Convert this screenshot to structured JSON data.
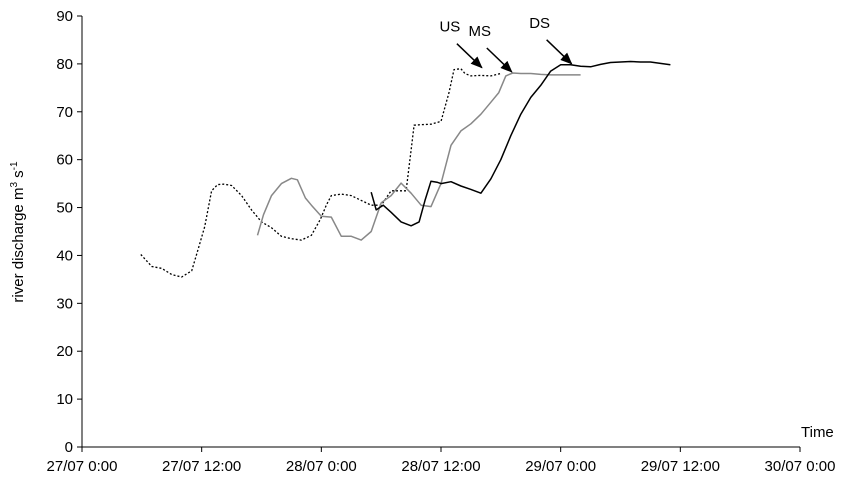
{
  "chart_data": {
    "type": "line",
    "title": "",
    "xlabel": "Time",
    "ylabel_text": "river discharge m",
    "ylabel_sup1": "3",
    "ylabel_mid": " s",
    "ylabel_sup2": "-1",
    "x_unit": "hours since 27/07 0:00 (x tick labels show date/time)",
    "xlim": [
      0,
      72
    ],
    "ylim": [
      0,
      90
    ],
    "x_ticks": [
      {
        "value": 0,
        "label": "27/07 0:00"
      },
      {
        "value": 12,
        "label": "27/07 12:00"
      },
      {
        "value": 24,
        "label": "28/07 0:00"
      },
      {
        "value": 36,
        "label": "28/07 12:00"
      },
      {
        "value": 48,
        "label": "29/07 0:00"
      },
      {
        "value": 60,
        "label": "29/07 12:00"
      },
      {
        "value": 72,
        "label": "30/07 0:00"
      }
    ],
    "y_ticks": [
      0,
      10,
      20,
      30,
      40,
      50,
      60,
      70,
      80,
      90
    ],
    "grid": false,
    "legend": "none",
    "series": [
      {
        "style": "dotted",
        "color": "#000000",
        "x": [
          5.9,
          7.0,
          8.0,
          9.0,
          10.0,
          11.0,
          11.6,
          12.3,
          13.0,
          13.6,
          14.2,
          15.0,
          16.0,
          17.0,
          18.0,
          19.0,
          20.0,
          21.0,
          22.0,
          23.0,
          23.9,
          24.5,
          25.0,
          26.0,
          27.0,
          28.0,
          29.0,
          30.0,
          31.0,
          32.5,
          33.0,
          33.3,
          34.0,
          35.0,
          36.0,
          36.8,
          37.3,
          38.0,
          38.4,
          39.0,
          40.0,
          41.0,
          42.0
        ],
        "y": [
          40.2,
          37.7,
          37.3,
          36.0,
          35.5,
          36.8,
          41.0,
          46.0,
          53.5,
          54.8,
          54.9,
          54.6,
          52.5,
          49.5,
          47.0,
          45.8,
          44.0,
          43.5,
          43.2,
          44.2,
          47.5,
          50.5,
          52.5,
          52.8,
          52.5,
          51.5,
          50.5,
          50.5,
          53.5,
          53.5,
          62.0,
          67.2,
          67.3,
          67.4,
          68.0,
          74.0,
          78.8,
          79.0,
          78.0,
          77.5,
          77.6,
          77.5,
          78.0
        ]
      },
      {
        "style": "solid",
        "color": "#888888",
        "x": [
          17.6,
          18.2,
          19.0,
          20.0,
          21.0,
          21.6,
          22.4,
          23.0,
          24.0,
          25.0,
          26.0,
          27.0,
          28.0,
          29.0,
          30.0,
          31.0,
          32.0,
          33.0,
          34.0,
          35.0,
          36.0,
          37.0,
          38.0,
          39.0,
          40.0,
          41.0,
          41.8,
          42.5,
          43.2,
          44.0,
          45.0,
          46.0,
          47.0,
          48.0,
          49.0,
          50.0
        ],
        "y": [
          44.2,
          48.5,
          52.5,
          55.0,
          56.1,
          55.8,
          52.0,
          50.5,
          48.2,
          48.0,
          44.0,
          44.0,
          43.2,
          45.0,
          51.0,
          52.5,
          55.1,
          53.0,
          50.5,
          50.2,
          55.0,
          63.0,
          66.0,
          67.5,
          69.5,
          72.0,
          74.0,
          77.5,
          78.1,
          78.0,
          78.0,
          77.8,
          77.7,
          77.7,
          77.7,
          77.7
        ]
      },
      {
        "style": "solid",
        "color": "#000000",
        "x": [
          29.0,
          29.5,
          30.2,
          31.0,
          32.0,
          33.0,
          33.8,
          34.4,
          35.0,
          35.6,
          36.0,
          37.0,
          38.0,
          39.0,
          40.0,
          41.0,
          42.0,
          43.0,
          44.0,
          45.0,
          46.0,
          47.0,
          48.0,
          49.0,
          50.0,
          51.0,
          52.0,
          53.0,
          54.0,
          55.0,
          56.0,
          57.0,
          58.0,
          59.0
        ],
        "y": [
          53.2,
          49.5,
          50.5,
          49.0,
          47.0,
          46.2,
          47.0,
          51.5,
          55.5,
          55.3,
          55.0,
          55.4,
          54.5,
          53.8,
          53.0,
          56.0,
          60.0,
          65.0,
          69.5,
          73.0,
          75.5,
          78.5,
          79.8,
          79.8,
          79.5,
          79.4,
          79.9,
          80.3,
          80.4,
          80.5,
          80.4,
          80.4,
          80.1,
          79.8
        ]
      }
    ],
    "annotations": [
      {
        "label": "US",
        "x": 40.2,
        "y": 79.0
      },
      {
        "label": "MS",
        "x": 43.2,
        "y": 78.1
      },
      {
        "label": "DS",
        "x": 49.2,
        "y": 79.8
      }
    ]
  }
}
